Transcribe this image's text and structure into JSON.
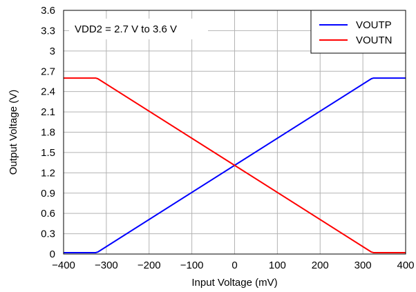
{
  "chart_data": {
    "type": "line",
    "xlabel": "Input Voltage (mV)",
    "ylabel": "Output Voltage (V)",
    "xlim": [
      -400,
      400
    ],
    "ylim": [
      0,
      3.6
    ],
    "xticks": [
      -400,
      -300,
      -200,
      -100,
      0,
      100,
      200,
      300,
      400
    ],
    "xtick_labels": [
      "−400",
      "−300",
      "−200",
      "−100",
      "0",
      "100",
      "200",
      "300",
      "400"
    ],
    "yticks": [
      0,
      0.3,
      0.6,
      0.9,
      1.2,
      1.5,
      1.8,
      2.1,
      2.4,
      2.7,
      3,
      3.3,
      3.6
    ],
    "ytick_labels": [
      "0",
      "0.3",
      "0.6",
      "0.9",
      "1.2",
      "1.5",
      "1.8",
      "2.1",
      "2.4",
      "2.7",
      "3",
      "3.3",
      "3.6"
    ],
    "grid": true,
    "legend_position": "top-right",
    "annotation": "VDD2 = 2.7 V to 3.6 V",
    "series": [
      {
        "name": "VOUTP",
        "color": "#0000ff",
        "x": [
          -400,
          -325,
          -320,
          0,
          320,
          325,
          400
        ],
        "y": [
          0.02,
          0.02,
          0.03,
          1.31,
          2.59,
          2.6,
          2.6
        ]
      },
      {
        "name": "VOUTN",
        "color": "#ff0000",
        "x": [
          -400,
          -325,
          -320,
          0,
          320,
          325,
          400
        ],
        "y": [
          2.6,
          2.6,
          2.59,
          1.31,
          0.03,
          0.02,
          0.02
        ]
      }
    ]
  }
}
